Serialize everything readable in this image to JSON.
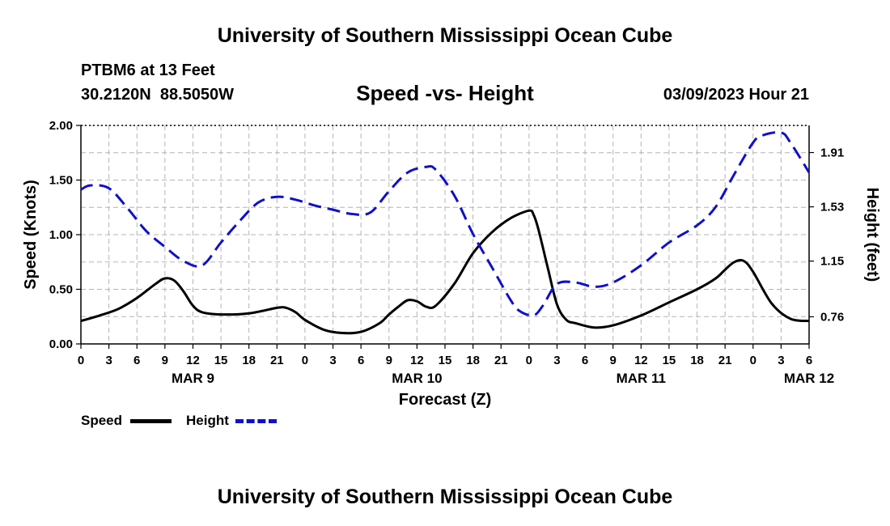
{
  "header": {
    "title_top": "University of Southern Mississippi Ocean Cube",
    "station": "PTBM6 at 13 Feet",
    "location": "30.2120N  88.5050W",
    "subtitle": "Speed -vs- Height",
    "datetime": "03/09/2023 Hour 21",
    "title_bottom": "University of Southern Mississippi Ocean Cube"
  },
  "legend": {
    "speed_label": "Speed",
    "height_label": "Height"
  },
  "colors": {
    "speed": "#000000",
    "height": "#1010c8",
    "grid": "#b4b4b4"
  },
  "chart_data": {
    "type": "line",
    "title": "Speed -vs- Height",
    "xlabel": "Forecast (Z)",
    "ylabel": "Speed (Knots)",
    "y2label": "Height (feet)",
    "xlim": [
      0,
      78
    ],
    "ylim": [
      0,
      2
    ],
    "y2lim": [
      0.57,
      2.1
    ],
    "x_ticks": [
      0,
      3,
      6,
      9,
      12,
      15,
      18,
      21,
      24,
      27,
      30,
      33,
      36,
      39,
      42,
      45,
      48,
      51,
      54,
      57,
      60,
      63,
      66,
      69,
      72,
      75,
      78
    ],
    "x_tick_labels": [
      "0",
      "3",
      "6",
      "9",
      "12",
      "15",
      "18",
      "21",
      "0",
      "3",
      "6",
      "9",
      "12",
      "15",
      "18",
      "21",
      "0",
      "3",
      "6",
      "9",
      "12",
      "15",
      "18",
      "21",
      "0",
      "3",
      "6"
    ],
    "day_labels": [
      {
        "x": 12,
        "label": "MAR 9"
      },
      {
        "x": 36,
        "label": "MAR 10"
      },
      {
        "x": 60,
        "label": "MAR 11"
      },
      {
        "x": 78,
        "label": "MAR 12"
      }
    ],
    "y_ticks": [
      0,
      0.5,
      1.0,
      1.5,
      2.0
    ],
    "y_tick_labels": [
      "0.00",
      "0.50",
      "1.00",
      "1.50",
      "2.00"
    ],
    "y2_ticks": [
      0.76,
      1.15,
      1.53,
      1.91
    ],
    "y2_tick_labels": [
      "0.76",
      "1.15",
      "1.53",
      "1.91"
    ],
    "grid": true,
    "series": [
      {
        "name": "Speed",
        "axis": "left",
        "style": "solid",
        "x": [
          0,
          2,
          4,
          6,
          8,
          9,
          10,
          11,
          12,
          13,
          15,
          18,
          21,
          22,
          23,
          24,
          26,
          28,
          30,
          32,
          33,
          34,
          35,
          36,
          37,
          38,
          40,
          42,
          44,
          46,
          48,
          48.5,
          49,
          50,
          51,
          52,
          53,
          55,
          57,
          60,
          63,
          66,
          68,
          69,
          70,
          71,
          72,
          74,
          76,
          78
        ],
        "values": [
          0.21,
          0.26,
          0.32,
          0.42,
          0.55,
          0.6,
          0.58,
          0.48,
          0.35,
          0.29,
          0.27,
          0.28,
          0.33,
          0.33,
          0.29,
          0.22,
          0.13,
          0.1,
          0.11,
          0.19,
          0.27,
          0.34,
          0.4,
          0.39,
          0.34,
          0.35,
          0.55,
          0.83,
          1.02,
          1.15,
          1.22,
          1.18,
          1.05,
          0.7,
          0.36,
          0.22,
          0.19,
          0.15,
          0.17,
          0.26,
          0.38,
          0.5,
          0.6,
          0.68,
          0.75,
          0.76,
          0.66,
          0.37,
          0.23,
          0.21
        ]
      },
      {
        "name": "Height",
        "axis": "right",
        "style": "dashed",
        "x": [
          0,
          1,
          3,
          5,
          7,
          9,
          11,
          13,
          15,
          17,
          19,
          21,
          23,
          25,
          27,
          29,
          31,
          33,
          35,
          37,
          38,
          40,
          42,
          44,
          46,
          47,
          48.5,
          49.5,
          51,
          53,
          55,
          57,
          60,
          63,
          66,
          68,
          70,
          72,
          73,
          75,
          76,
          78
        ],
        "values": [
          1.65,
          1.68,
          1.66,
          1.52,
          1.36,
          1.25,
          1.15,
          1.12,
          1.28,
          1.43,
          1.56,
          1.6,
          1.58,
          1.54,
          1.51,
          1.48,
          1.49,
          1.64,
          1.77,
          1.81,
          1.79,
          1.61,
          1.34,
          1.11,
          0.88,
          0.8,
          0.77,
          0.84,
          0.99,
          1.0,
          0.97,
          1.0,
          1.12,
          1.28,
          1.4,
          1.53,
          1.76,
          1.98,
          2.03,
          2.05,
          1.98,
          1.77
        ]
      }
    ]
  }
}
